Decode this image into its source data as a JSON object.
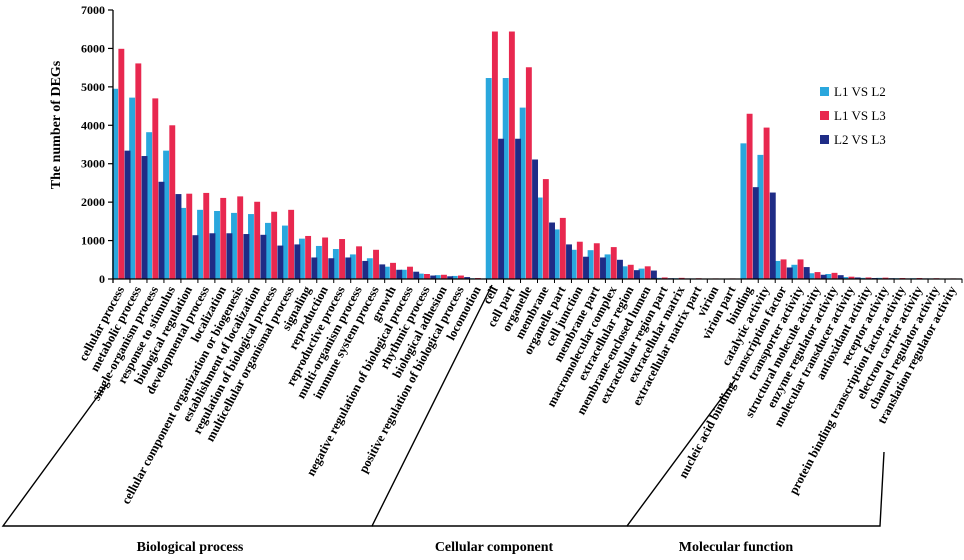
{
  "chart_data": {
    "type": "bar",
    "ylabel": "The number of DEGs",
    "xlabel": "",
    "ylim": [
      0,
      7000
    ],
    "yticks": [
      "0",
      "1000",
      "2000",
      "3000",
      "4000",
      "5000",
      "6000",
      "7000"
    ],
    "legend_position": "right",
    "categories": [
      "cellular process",
      "metabolic process",
      "single-organism process",
      "response to stimulus",
      "biological regulation",
      "developmental process",
      "localization",
      "cellular component organization or biogenesis",
      "establishment of localization",
      "regulation of biological process",
      "multicellular organismal process",
      "signaling",
      "reproduction",
      "reproductive process",
      "multi-organism process",
      "immune system process",
      "growth",
      "negative regulation of biological process",
      "rhythmic process",
      "biological adhesion",
      "positive regulation of biological process",
      "locomotion",
      "cell",
      "cell part",
      "organelle",
      "membrane",
      "organelle part",
      "cell junction",
      "membrane part",
      "macromolecular complex",
      "extracellular region",
      "membrane-enclosed lumen",
      "extracellular region part",
      "extracellular matrix",
      "extracellular matrix part",
      "virion",
      "virion part",
      "binding",
      "catalytic activity",
      "nucleic acid binding transcription factor",
      "transporter activity",
      "structural molecule activity",
      "enzyme regulator activity",
      "molecular transducer activity",
      "antioxidant activity",
      "receptor activity",
      "protein binding transcription factor activity",
      "electron carrier activity",
      "channel regulator activity",
      "translation regulator activity"
    ],
    "series": [
      {
        "name": "L1 VS L2",
        "color": "#2aa7dd",
        "values": [
          4950,
          4720,
          3820,
          3340,
          1850,
          1800,
          1770,
          1720,
          1690,
          1460,
          1390,
          1050,
          860,
          780,
          640,
          540,
          320,
          240,
          140,
          100,
          80,
          20,
          5230,
          5230,
          4460,
          2120,
          1290,
          760,
          750,
          640,
          330,
          270,
          30,
          20,
          15,
          10,
          10,
          3530,
          3230,
          470,
          370,
          150,
          130,
          50,
          30,
          30,
          20,
          20,
          15,
          10
        ]
      },
      {
        "name": "L1 VS L3",
        "color": "#e8284f",
        "values": [
          5990,
          5610,
          4700,
          4000,
          2220,
          2240,
          2110,
          2150,
          2010,
          1750,
          1800,
          1120,
          1080,
          1040,
          850,
          760,
          420,
          320,
          130,
          110,
          90,
          25,
          6440,
          6440,
          5510,
          2600,
          1590,
          970,
          930,
          830,
          370,
          330,
          40,
          30,
          20,
          15,
          15,
          4300,
          3940,
          510,
          510,
          180,
          160,
          60,
          40,
          35,
          25,
          25,
          20,
          15
        ]
      },
      {
        "name": "L2 VS L3",
        "color": "#1f2c86",
        "values": [
          3340,
          3200,
          2530,
          2210,
          1140,
          1190,
          1190,
          1170,
          1150,
          870,
          900,
          560,
          540,
          560,
          470,
          380,
          240,
          190,
          90,
          70,
          50,
          15,
          3650,
          3650,
          3110,
          1470,
          900,
          580,
          560,
          500,
          230,
          220,
          20,
          15,
          10,
          8,
          8,
          2390,
          2250,
          300,
          310,
          110,
          100,
          40,
          25,
          20,
          15,
          15,
          10,
          8
        ]
      }
    ],
    "groups": [
      {
        "label": "Biological process",
        "start": 0,
        "end": 21
      },
      {
        "label": "Cellular component",
        "start": 22,
        "end": 36
      },
      {
        "label": "Molecular function",
        "start": 37,
        "end": 49
      }
    ]
  }
}
